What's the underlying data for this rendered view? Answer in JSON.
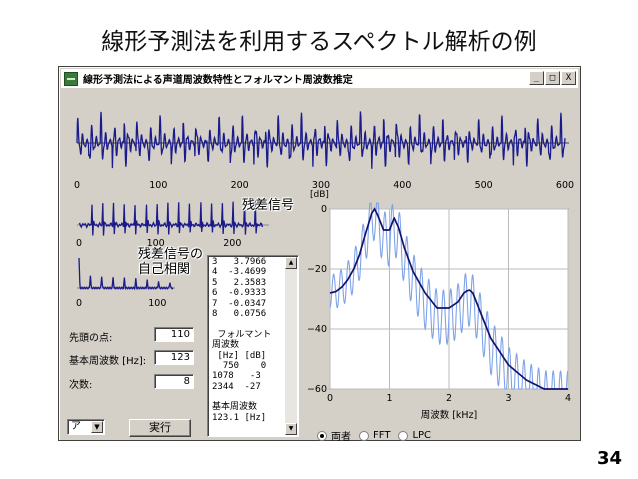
{
  "slide": {
    "title": "線形予測法を利用するスペクトル解析の例",
    "page_number": "34",
    "callout_residual": "残差信号",
    "callout_autocorr": "残差信号の\n自己相関"
  },
  "window": {
    "title": "線形予測法による声道周波数特性とフォルマント周波数推定",
    "minimize": "_",
    "maximize": "□",
    "close": "X"
  },
  "waveform": {
    "ticks": [
      "0",
      "100",
      "200",
      "300",
      "400",
      "500",
      "600"
    ],
    "max": 600,
    "period": 14.5,
    "color": "#1a1a8a"
  },
  "residual": {
    "ticks": [
      "0",
      "100",
      "200"
    ],
    "max": 240,
    "pulse_positions": [
      17,
      31,
      45,
      59,
      73,
      88,
      102,
      116,
      130,
      144,
      159,
      173,
      187,
      201,
      216,
      230
    ]
  },
  "autocorr": {
    "ticks": [
      "0",
      "100"
    ],
    "max": 120,
    "peak_positions": [
      0,
      14.5,
      29,
      43.5,
      58,
      72.5,
      87,
      101.5,
      116
    ]
  },
  "controls": {
    "start_label": "先頭の点:",
    "start_value": "110",
    "f0_label": "基本周波数 [Hz]:",
    "f0_value": "123",
    "order_label": "次数:",
    "order_value": "8",
    "mode_value": "ア",
    "run_button": "実行"
  },
  "list": {
    "lines": [
      "3   3.7966",
      "4  -3.4699",
      "5   2.3583",
      "6  -0.9333",
      "7  -0.0347",
      "8   0.0756",
      "",
      " フォルマント",
      "周波数",
      " [Hz] [dB]",
      "  750    0",
      "1078   -3",
      "2344  -27",
      "",
      "基本周波数",
      "123.1 [Hz]"
    ]
  },
  "radio": {
    "options": [
      "両者",
      "FFT",
      "LPC"
    ],
    "selected": "両者"
  },
  "chart_data": {
    "type": "line",
    "xlabel": "周波数 [kHz]",
    "ylabel": "[dB]",
    "xlim": [
      0,
      4
    ],
    "ylim": [
      -60,
      0
    ],
    "x_ticks": [
      "0",
      "1",
      "2",
      "3",
      "4"
    ],
    "y_ticks": [
      "0",
      "−20",
      "−40",
      "−60"
    ],
    "grid": true,
    "series": [
      {
        "color": "#7fa3e8",
        "harmonic_spacing_khz": 0.123,
        "peak_offset_db": 6,
        "valley_depth_db": 18
      },
      {
        "color": "#13136e",
        "x": [
          0,
          0.1,
          0.2,
          0.3,
          0.4,
          0.5,
          0.6,
          0.7,
          0.75,
          0.8,
          0.9,
          1.0,
          1.078,
          1.15,
          1.25,
          1.4,
          1.6,
          1.8,
          2.0,
          2.15,
          2.25,
          2.3,
          2.344,
          2.4,
          2.5,
          2.7,
          3.0,
          3.3,
          3.6,
          4.0
        ],
        "y": [
          -28,
          -27.5,
          -26,
          -23.5,
          -20,
          -15,
          -8,
          -1.5,
          0,
          -2,
          -7,
          -7,
          -3,
          -6,
          -13,
          -21,
          -28,
          -33,
          -33,
          -31,
          -28,
          -27.3,
          -27,
          -28,
          -33,
          -43,
          -52,
          -57,
          -60,
          -60
        ]
      }
    ]
  }
}
